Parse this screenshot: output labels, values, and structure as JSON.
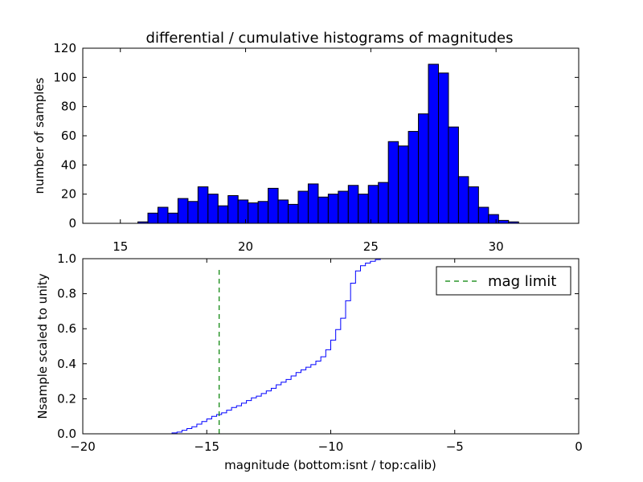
{
  "chart_data": [
    {
      "type": "bar",
      "title": "differential / cumulative histograms of magnitudes",
      "xlabel": "",
      "ylabel": "number of samples",
      "xlim": [
        13.5,
        33.3
      ],
      "ylim": [
        0,
        120
      ],
      "x_ticks": [
        15,
        20,
        25,
        30
      ],
      "x_tick_labels": [
        "15",
        "20",
        "25",
        "30"
      ],
      "y_ticks": [
        0,
        20,
        40,
        60,
        80,
        100,
        120
      ],
      "y_tick_labels": [
        "0",
        "20",
        "40",
        "60",
        "80",
        "100",
        "120"
      ],
      "bin_width": 0.4,
      "bin_starts": [
        15.7,
        16.1,
        16.5,
        16.9,
        17.3,
        17.7,
        18.1,
        18.5,
        18.9,
        19.3,
        19.7,
        20.1,
        20.5,
        20.9,
        21.3,
        21.7,
        22.1,
        22.5,
        22.9,
        23.3,
        23.7,
        24.1,
        24.5,
        24.9,
        25.3,
        25.7,
        26.1,
        26.5,
        26.9,
        27.3,
        27.7,
        28.1,
        28.5,
        28.9,
        29.3,
        29.7,
        30.1,
        30.5,
        30.9
      ],
      "values": [
        1,
        7,
        11,
        7,
        17,
        15,
        25,
        20,
        12,
        19,
        16,
        14,
        15,
        24,
        16,
        13,
        22,
        27,
        18,
        20,
        22,
        26,
        20,
        26,
        28,
        56,
        53,
        63,
        75,
        109,
        103,
        66,
        32,
        25,
        11,
        6,
        2,
        1,
        0
      ],
      "bar_color": "#0000ff"
    },
    {
      "type": "line",
      "title": "",
      "xlabel": "magnitude (bottom:isnt / top:calib)",
      "ylabel": "Nsample scaled to unity",
      "xlim": [
        -20,
        0
      ],
      "ylim": [
        0,
        1.0
      ],
      "x_ticks": [
        -20,
        -15,
        -10,
        -5,
        0
      ],
      "x_tick_labels": [
        "−20",
        "−15",
        "−10",
        "−5",
        "0"
      ],
      "y_ticks": [
        0,
        0.2,
        0.4,
        0.6,
        0.8,
        1.0
      ],
      "y_tick_labels": [
        "0.0",
        "0.2",
        "0.4",
        "0.6",
        "0.8",
        "1.0"
      ],
      "series": [
        {
          "name": "cumulative",
          "color": "#0000ff",
          "step": true,
          "x": [
            -20,
            -16.4,
            -16.2,
            -16.0,
            -15.8,
            -15.6,
            -15.4,
            -15.2,
            -15.0,
            -14.8,
            -14.6,
            -14.4,
            -14.2,
            -14.0,
            -13.8,
            -13.6,
            -13.4,
            -13.2,
            -13.0,
            -12.8,
            -12.6,
            -12.4,
            -12.2,
            -12.0,
            -11.8,
            -11.6,
            -11.4,
            -11.2,
            -11.0,
            -10.8,
            -10.6,
            -10.4,
            -10.2,
            -10.0,
            -9.8,
            -9.6,
            -9.4,
            -9.2,
            -9.0,
            -8.8,
            -8.6,
            -8.4,
            -8.2,
            -8.0,
            -7.8,
            -7.6
          ],
          "y": [
            0.0,
            0.005,
            0.01,
            0.02,
            0.03,
            0.04,
            0.055,
            0.07,
            0.085,
            0.1,
            0.11,
            0.12,
            0.135,
            0.15,
            0.16,
            0.175,
            0.19,
            0.205,
            0.215,
            0.23,
            0.245,
            0.26,
            0.28,
            0.295,
            0.31,
            0.33,
            0.35,
            0.365,
            0.38,
            0.395,
            0.415,
            0.44,
            0.48,
            0.535,
            0.595,
            0.66,
            0.76,
            0.86,
            0.93,
            0.96,
            0.975,
            0.985,
            0.995,
            1.0,
            1.0,
            1.0
          ]
        },
        {
          "name": "mag limit",
          "color": "#008000",
          "style": "dashed",
          "x": [
            -14.5,
            -14.5
          ],
          "y": [
            0.0,
            0.95
          ]
        }
      ],
      "legend": {
        "label": "mag limit",
        "placement": "top-right"
      }
    }
  ]
}
